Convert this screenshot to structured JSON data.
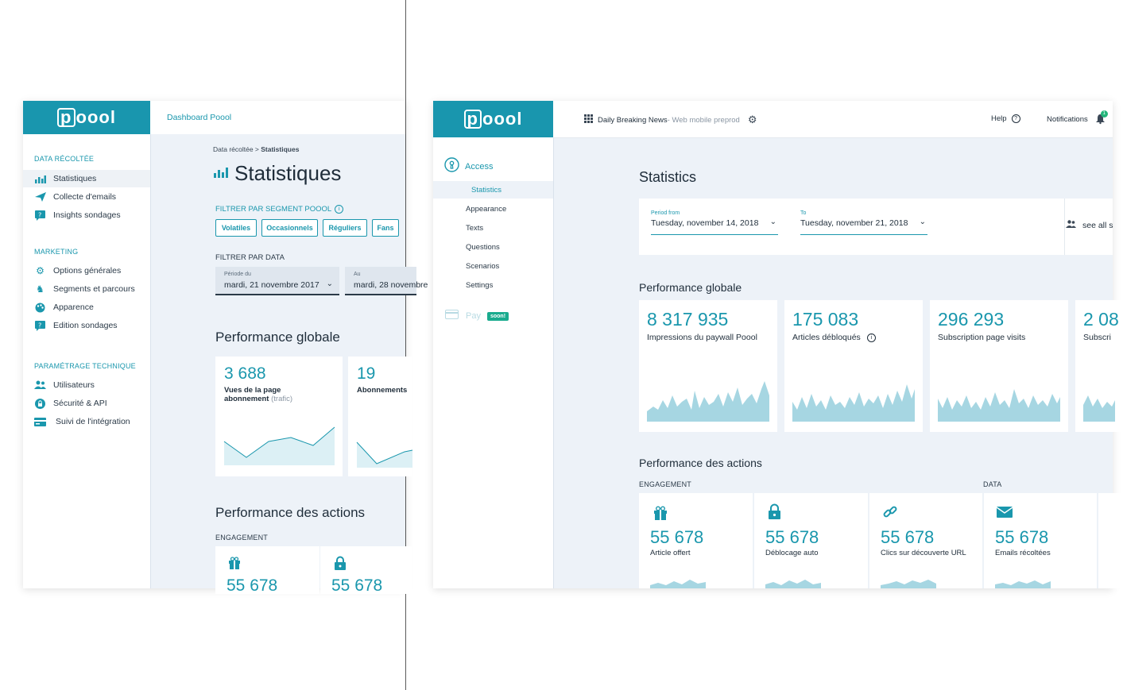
{
  "colors": {
    "accent": "#1a97ad",
    "sidebar_bg": "#ffffff",
    "content_bg": "#edf2f8",
    "logo_bg": "#1996ae"
  },
  "left": {
    "logo": "poool",
    "breadcrumb_header": "Dashboard Poool",
    "sidebar": {
      "sections": [
        {
          "title": "DATA RÉCOLTÉE",
          "items": [
            {
              "label": "Statistiques",
              "icon": "bar-chart-icon",
              "active": true
            },
            {
              "label": "Collecte d'emails",
              "icon": "paper-plane-icon"
            },
            {
              "label": "Insights sondages",
              "icon": "question-bubble-icon"
            }
          ]
        },
        {
          "title": "MARKETING",
          "items": [
            {
              "label": "Options générales",
              "icon": "gear-icon"
            },
            {
              "label": "Segments et parcours",
              "icon": "chess-piece-icon"
            },
            {
              "label": "Apparence",
              "icon": "palette-icon"
            },
            {
              "label": "Edition sondages",
              "icon": "question-bubble-icon"
            }
          ]
        },
        {
          "title": "PARAMÉTRAGE TECHNIQUE",
          "items": [
            {
              "label": "Utilisateurs",
              "icon": "users-icon"
            },
            {
              "label": "Sécurité & API",
              "icon": "lock-icon"
            },
            {
              "label": "Suivi de l'intégration",
              "icon": "card-icon"
            }
          ]
        }
      ]
    },
    "crumb_prefix": "Data récoltée > ",
    "crumb_current": "Statistiques",
    "page_title": "Statistiques",
    "segment_filter_label": "FILTRER PAR SEGMENT POOOL",
    "segment_buttons": [
      "Volatiles",
      "Occasionnels",
      "Réguliers",
      "Fans"
    ],
    "data_filter_label": "FILTRER PAR DATA",
    "period_from_label": "Période du",
    "period_from_value": "mardi, 21 novembre 2017",
    "period_to_label": "Au",
    "period_to_value": "mardi, 28 novembre",
    "perf_title": "Performance globale",
    "cards": [
      {
        "value": "3 688",
        "label_main": "Vues de la page abonnement",
        "label_muted": "(trafic)"
      },
      {
        "value": "19",
        "label_main": "Abonnements"
      }
    ],
    "actions_title": "Performance des actions",
    "engagement_label": "ENGAGEMENT",
    "action_values": [
      "55 678",
      "55 678"
    ]
  },
  "right": {
    "logo": "poool",
    "site_name": "Daily Breaking News",
    "site_env": " - Web mobile preprod",
    "help_label": "Help",
    "notifications_label": "Notifications",
    "notifications_count": "1",
    "access_label": "Access",
    "sub_nav": [
      "Statistics",
      "Appearance",
      "Texts",
      "Questions",
      "Scenarios",
      "Settings"
    ],
    "pay_label": "Pay",
    "soon_badge": "soon!",
    "page_title": "Statistics",
    "period_from_label": "Period from",
    "period_from_value": "Tuesday, november 14, 2018",
    "period_to_label": "To",
    "period_to_value": "Tuesday, november 21, 2018",
    "see_all_label": "see all s",
    "perf_title": "Performance globale",
    "cards": [
      {
        "value": "8 317 935",
        "label": "Impressions du paywall Poool"
      },
      {
        "value": "175 083",
        "label": "Articles débloqués"
      },
      {
        "value": "296 293",
        "label": "Subscription page visits"
      },
      {
        "value": "2 08",
        "label": "Subscri"
      }
    ],
    "actions_title": "Performance des actions",
    "engagement_label": "ENGAGEMENT",
    "data_label": "DATA",
    "actions": [
      {
        "value": "55 678",
        "label": "Article offert",
        "icon": "gift-icon"
      },
      {
        "value": "55 678",
        "label": "Déblocage auto",
        "icon": "lock-icon"
      },
      {
        "value": "55 678",
        "label": "Clics sur découverte URL",
        "icon": "link-icon"
      },
      {
        "value": "55 678",
        "label": "Emails récoltées",
        "icon": "envelope-icon"
      }
    ]
  }
}
